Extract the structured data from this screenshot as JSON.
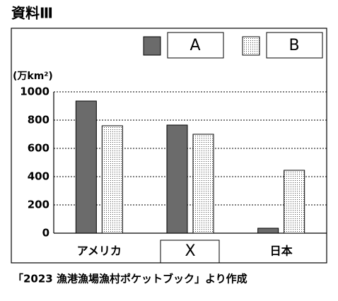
{
  "chart_data": {
    "type": "bar",
    "title": "資料Ⅲ",
    "y_label": "(万km²)",
    "categories": [
      "アメリカ",
      "X",
      "日本"
    ],
    "series": [
      {
        "name": "A",
        "color": "#6b6b6b",
        "values": [
          935,
          765,
          35
        ]
      },
      {
        "name": "B",
        "color": "dotted",
        "values": [
          760,
          700,
          445
        ]
      }
    ],
    "ylim": [
      0,
      1000
    ],
    "yticks": [
      0,
      200,
      400,
      600,
      800,
      1000
    ],
    "grid": true,
    "source": "「2023 漁港漁場漁村ポケットブック」より作成"
  }
}
